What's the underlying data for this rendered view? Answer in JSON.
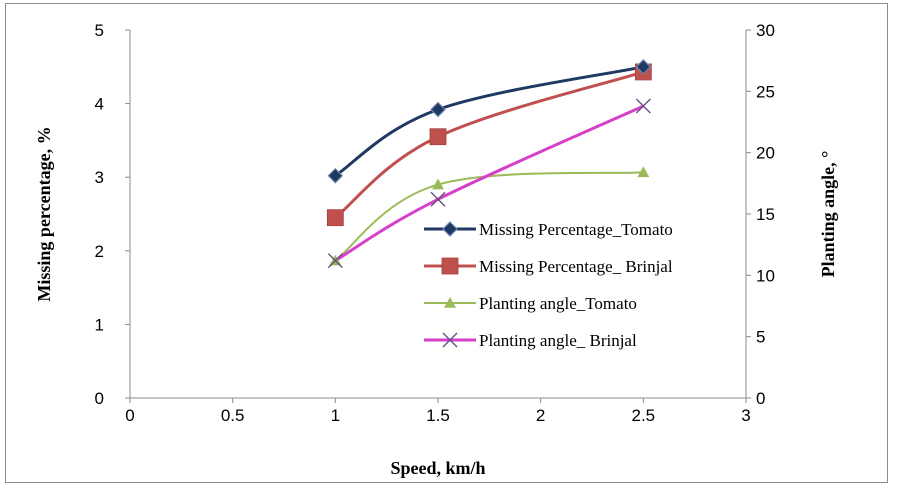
{
  "chart_data": {
    "type": "line",
    "xlabel": "Speed, km/h",
    "ylabel": "Missing percentage, %",
    "y2label": "Planting angle, °",
    "xlim": [
      0,
      3
    ],
    "ylim": [
      0,
      5
    ],
    "y2lim": [
      0,
      30
    ],
    "xticks": [
      "0",
      "0.5",
      "1",
      "1.5",
      "2",
      "2.5",
      "3"
    ],
    "yticks": [
      "0",
      "1",
      "2",
      "3",
      "4",
      "5"
    ],
    "y2ticks": [
      "0",
      "5",
      "10",
      "15",
      "20",
      "25",
      "30"
    ],
    "grid": false,
    "legend_position": "right",
    "series": [
      {
        "name": "Missing Percentage_Tomato",
        "axis": "left",
        "color": "#1f3864",
        "marker": "diamond",
        "x": [
          1,
          1.5,
          2.5
        ],
        "y": [
          3.02,
          3.92,
          4.5
        ]
      },
      {
        "name": "Missing Percentage_ Brinjal",
        "axis": "left",
        "color": "#c0504d",
        "marker": "square",
        "x": [
          1,
          1.5,
          2.5
        ],
        "y": [
          2.45,
          3.55,
          4.43
        ]
      },
      {
        "name": "Planting angle_Tomato",
        "axis": "right",
        "color": "#9bbb59",
        "marker": "triangle",
        "x": [
          1,
          1.5,
          2.5
        ],
        "y": [
          11.2,
          17.4,
          18.4
        ]
      },
      {
        "name": "Planting angle_ Brinjal",
        "axis": "right",
        "color": "#d63fc8",
        "marker": "x",
        "x": [
          1,
          1.5,
          2.5
        ],
        "y": [
          11.2,
          16.2,
          23.8
        ]
      }
    ]
  }
}
